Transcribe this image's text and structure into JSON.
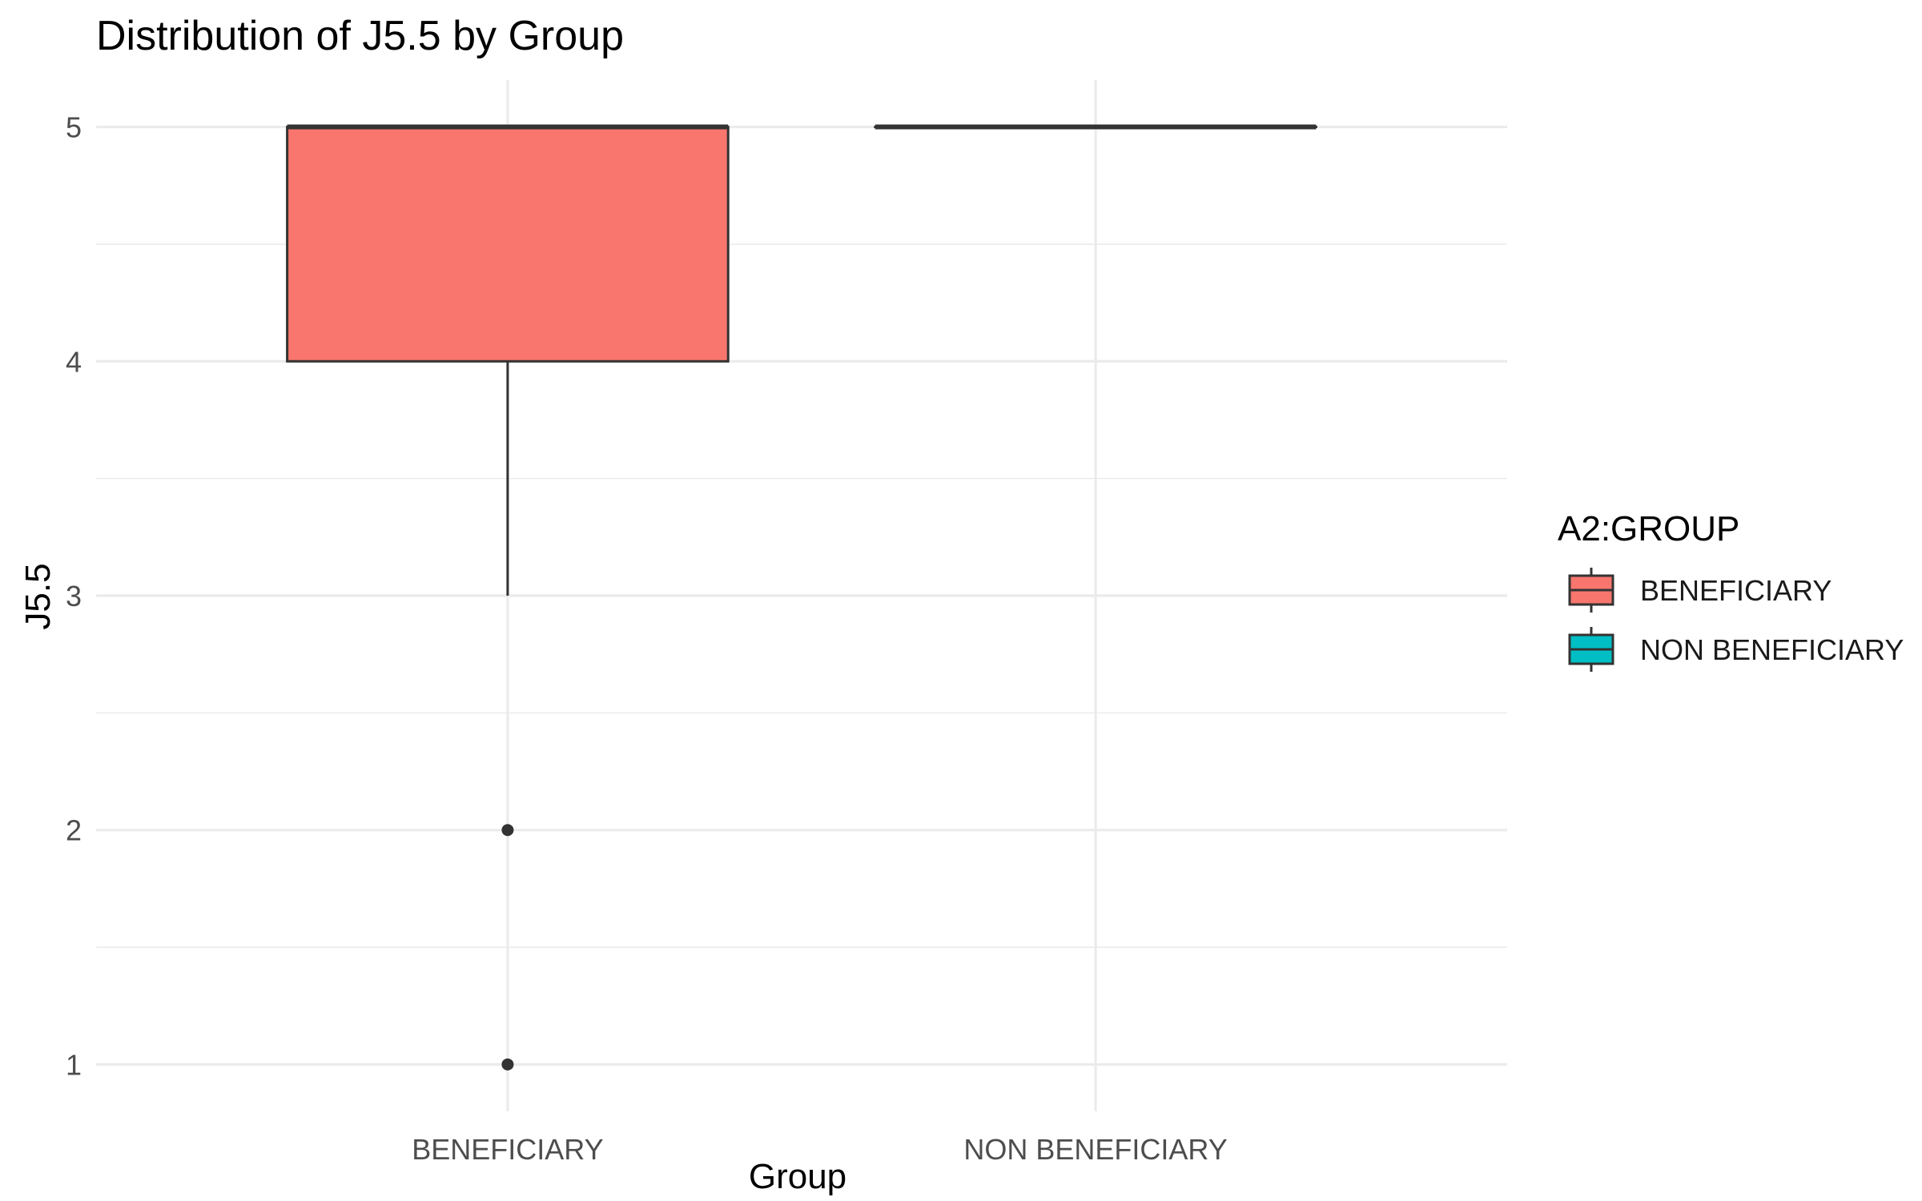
{
  "chart_data": {
    "type": "boxplot",
    "title": "Distribution of J5.5 by Group",
    "xlabel": "Group",
    "ylabel": "J5.5",
    "categories": [
      "BENEFICIARY",
      "NON BENEFICIARY"
    ],
    "ylim": [
      0.8,
      5.2
    ],
    "yticks": [
      1,
      2,
      3,
      4,
      5
    ],
    "grid": true,
    "legend": {
      "title": "A2:GROUP",
      "position": "right",
      "entries": [
        "BENEFICIARY",
        "NON BENEFICIARY"
      ]
    },
    "series": [
      {
        "name": "BENEFICIARY",
        "category": "BENEFICIARY",
        "color": "#F8766D",
        "whisker_low": 3,
        "q1": 4,
        "median": 5,
        "q3": 5,
        "whisker_high": 5,
        "outliers": [
          2,
          1
        ]
      },
      {
        "name": "NON BENEFICIARY",
        "category": "NON BENEFICIARY",
        "color": "#00BFC4",
        "whisker_low": 5,
        "q1": 5,
        "median": 5,
        "q3": 5,
        "whisker_high": 5,
        "outliers": []
      }
    ]
  }
}
